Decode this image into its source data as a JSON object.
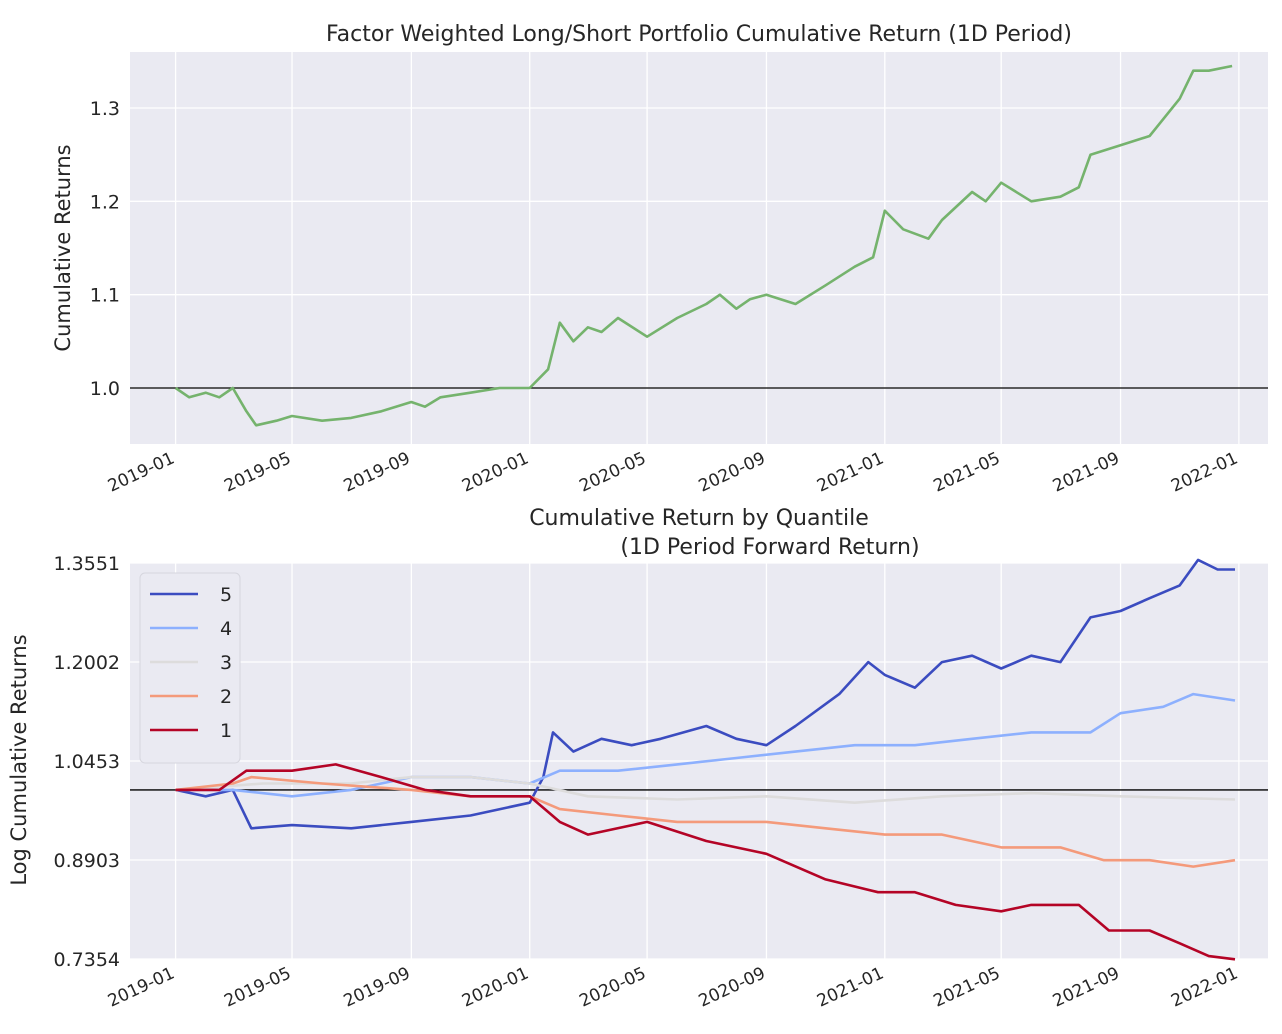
{
  "chart_data": [
    {
      "type": "line",
      "title": "Factor Weighted Long/Short Portfolio Cumulative Return (1D Period)",
      "xlabel": "",
      "ylabel": "Cumulative Returns",
      "x_range": [
        "2018-11-15",
        "2022-01-31"
      ],
      "ylim": [
        0.94,
        1.36
      ],
      "yticks": [
        "1.0",
        "1.1",
        "1.2",
        "1.3"
      ],
      "ytick_values": [
        1.0,
        1.1,
        1.2,
        1.3
      ],
      "xticks": [
        "2019-01",
        "2019-05",
        "2019-09",
        "2020-01",
        "2020-05",
        "2020-09",
        "2021-01",
        "2021-05",
        "2021-09",
        "2022-01"
      ],
      "xtick_dates": [
        "2019-01-01",
        "2019-05-01",
        "2019-09-01",
        "2020-01-01",
        "2020-05-01",
        "2020-09-01",
        "2021-01-01",
        "2021-05-01",
        "2021-09-01",
        "2022-01-01"
      ],
      "hline": 1.0,
      "grid": true,
      "series": [
        {
          "color": "#75b36d",
          "x": [
            "2019-01-01",
            "2019-01-15",
            "2019-02-01",
            "2019-02-15",
            "2019-03-01",
            "2019-03-15",
            "2019-03-25",
            "2019-04-15",
            "2019-05-01",
            "2019-06-01",
            "2019-07-01",
            "2019-08-01",
            "2019-09-01",
            "2019-09-15",
            "2019-10-01",
            "2019-11-01",
            "2019-12-01",
            "2020-01-01",
            "2020-01-20",
            "2020-02-01",
            "2020-02-15",
            "2020-03-01",
            "2020-03-15",
            "2020-04-01",
            "2020-05-01",
            "2020-06-01",
            "2020-07-01",
            "2020-07-15",
            "2020-08-01",
            "2020-08-15",
            "2020-09-01",
            "2020-10-01",
            "2020-11-01",
            "2020-12-01",
            "2020-12-20",
            "2021-01-01",
            "2021-01-20",
            "2021-02-15",
            "2021-03-01",
            "2021-04-01",
            "2021-04-15",
            "2021-05-01",
            "2021-06-01",
            "2021-07-01",
            "2021-07-20",
            "2021-08-01",
            "2021-09-01",
            "2021-10-01",
            "2021-11-01",
            "2021-11-15",
            "2021-12-01",
            "2021-12-25"
          ],
          "y": [
            1.0,
            0.99,
            0.995,
            0.99,
            1.0,
            0.975,
            0.96,
            0.965,
            0.97,
            0.965,
            0.968,
            0.975,
            0.985,
            0.98,
            0.99,
            0.995,
            1.0,
            1.0,
            1.02,
            1.07,
            1.05,
            1.065,
            1.06,
            1.075,
            1.055,
            1.075,
            1.09,
            1.1,
            1.085,
            1.095,
            1.1,
            1.09,
            1.11,
            1.13,
            1.14,
            1.19,
            1.17,
            1.16,
            1.18,
            1.21,
            1.2,
            1.22,
            1.2,
            1.205,
            1.215,
            1.25,
            1.26,
            1.27,
            1.31,
            1.34,
            1.34,
            1.345
          ]
        }
      ]
    },
    {
      "type": "line",
      "title": "Cumulative Return by Quantile\n(1D Period Forward Return)",
      "title_lines": [
        "Cumulative Return by Quantile",
        "(1D Period Forward Return)"
      ],
      "xlabel": "",
      "ylabel": "Log Cumulative Returns",
      "x_range": [
        "2018-11-15",
        "2022-01-31"
      ],
      "ylim": [
        0.7354,
        1.3551
      ],
      "yticks": [
        "0.7354",
        "0.8903",
        "1.0453",
        "1.2002",
        "1.3551"
      ],
      "ytick_values": [
        0.7354,
        0.8903,
        1.0453,
        1.2002,
        1.3551
      ],
      "xticks": [
        "2019-01",
        "2019-05",
        "2019-09",
        "2020-01",
        "2020-05",
        "2020-09",
        "2021-01",
        "2021-05",
        "2021-09",
        "2022-01"
      ],
      "xtick_dates": [
        "2019-01-01",
        "2019-05-01",
        "2019-09-01",
        "2020-01-01",
        "2020-05-01",
        "2020-09-01",
        "2021-01-01",
        "2021-05-01",
        "2021-09-01",
        "2022-01-01"
      ],
      "hline": 1.0,
      "grid": true,
      "legend": "top-left",
      "series": [
        {
          "name": "5",
          "color": "#3b4cc0",
          "x": [
            "2019-01-01",
            "2019-02-01",
            "2019-03-01",
            "2019-03-20",
            "2019-05-01",
            "2019-07-01",
            "2019-09-01",
            "2019-11-01",
            "2020-01-01",
            "2020-01-15",
            "2020-01-25",
            "2020-02-15",
            "2020-03-15",
            "2020-04-15",
            "2020-05-15",
            "2020-07-01",
            "2020-08-01",
            "2020-09-01",
            "2020-10-01",
            "2020-11-15",
            "2020-12-15",
            "2021-01-01",
            "2021-02-01",
            "2021-03-01",
            "2021-04-01",
            "2021-05-01",
            "2021-06-01",
            "2021-07-01",
            "2021-08-01",
            "2021-09-01",
            "2021-10-01",
            "2021-11-01",
            "2021-11-20",
            "2021-12-10",
            "2021-12-28"
          ],
          "y": [
            1.0,
            0.99,
            1.0,
            0.94,
            0.945,
            0.94,
            0.95,
            0.96,
            0.98,
            1.02,
            1.09,
            1.06,
            1.08,
            1.07,
            1.08,
            1.1,
            1.08,
            1.07,
            1.1,
            1.15,
            1.2,
            1.18,
            1.16,
            1.2,
            1.21,
            1.19,
            1.21,
            1.2,
            1.27,
            1.28,
            1.3,
            1.32,
            1.36,
            1.345,
            1.345
          ]
        },
        {
          "name": "4",
          "color": "#8db0fe",
          "x": [
            "2019-01-01",
            "2019-03-01",
            "2019-05-01",
            "2019-07-01",
            "2019-09-01",
            "2019-11-01",
            "2020-01-01",
            "2020-02-01",
            "2020-04-01",
            "2020-06-01",
            "2020-08-01",
            "2020-10-01",
            "2020-12-01",
            "2021-02-01",
            "2021-04-01",
            "2021-06-01",
            "2021-08-01",
            "2021-09-01",
            "2021-10-15",
            "2021-11-15",
            "2021-12-28"
          ],
          "y": [
            1.0,
            1.0,
            0.99,
            1.0,
            1.02,
            1.02,
            1.01,
            1.03,
            1.03,
            1.04,
            1.05,
            1.06,
            1.07,
            1.07,
            1.08,
            1.09,
            1.09,
            1.12,
            1.13,
            1.15,
            1.14
          ]
        },
        {
          "name": "3",
          "color": "#dddcdc",
          "x": [
            "2019-01-01",
            "2019-04-01",
            "2019-07-01",
            "2019-09-01",
            "2019-11-01",
            "2020-01-01",
            "2020-03-01",
            "2020-06-01",
            "2020-09-01",
            "2020-12-01",
            "2021-03-01",
            "2021-06-01",
            "2021-09-01",
            "2021-12-28"
          ],
          "y": [
            1.0,
            1.01,
            1.01,
            1.02,
            1.02,
            1.01,
            0.99,
            0.985,
            0.99,
            0.98,
            0.99,
            0.995,
            0.99,
            0.985
          ]
        },
        {
          "name": "2",
          "color": "#f49a7b",
          "x": [
            "2019-01-01",
            "2019-03-01",
            "2019-03-20",
            "2019-06-01",
            "2019-09-01",
            "2019-11-01",
            "2020-01-01",
            "2020-02-01",
            "2020-04-01",
            "2020-06-01",
            "2020-09-01",
            "2020-11-01",
            "2021-01-01",
            "2021-03-01",
            "2021-05-01",
            "2021-07-01",
            "2021-08-15",
            "2021-10-01",
            "2021-11-15",
            "2021-12-28"
          ],
          "y": [
            1.0,
            1.01,
            1.02,
            1.01,
            1.0,
            0.99,
            0.99,
            0.97,
            0.96,
            0.95,
            0.95,
            0.94,
            0.93,
            0.93,
            0.91,
            0.91,
            0.89,
            0.89,
            0.88,
            0.89
          ]
        },
        {
          "name": "1",
          "color": "#b40426",
          "x": [
            "2019-01-01",
            "2019-02-15",
            "2019-03-15",
            "2019-05-01",
            "2019-06-15",
            "2019-08-01",
            "2019-09-15",
            "2019-11-01",
            "2020-01-01",
            "2020-02-01",
            "2020-03-01",
            "2020-05-01",
            "2020-07-01",
            "2020-09-01",
            "2020-11-01",
            "2020-12-25",
            "2021-02-01",
            "2021-03-15",
            "2021-05-01",
            "2021-06-01",
            "2021-07-20",
            "2021-08-20",
            "2021-10-01",
            "2021-11-01",
            "2021-12-01",
            "2021-12-28"
          ],
          "y": [
            1.0,
            1.0,
            1.03,
            1.03,
            1.04,
            1.02,
            1.0,
            0.99,
            0.99,
            0.95,
            0.93,
            0.95,
            0.92,
            0.9,
            0.86,
            0.84,
            0.84,
            0.82,
            0.81,
            0.82,
            0.82,
            0.78,
            0.78,
            0.76,
            0.74,
            0.735
          ]
        }
      ]
    }
  ]
}
